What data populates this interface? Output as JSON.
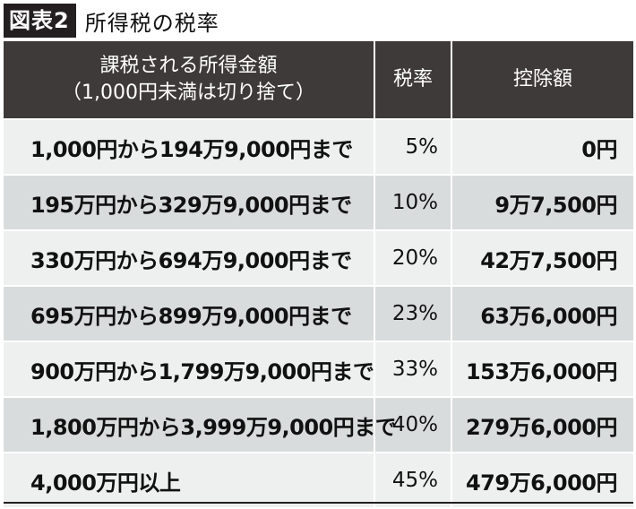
{
  "figure": {
    "badge": "図表2",
    "title": "所得税の税率"
  },
  "header": {
    "col1_line1": "課税される所得金額",
    "col1_line2": "（1,000円未満は切り捨て）",
    "col2": "税率",
    "col3": "控除額"
  },
  "rows": [
    {
      "range": "1,000円から194万9,000円まで",
      "rate": "5%",
      "deduction": "0円"
    },
    {
      "range": "195万円から329万9,000円まで",
      "rate": "10%",
      "deduction": "9万7,500円"
    },
    {
      "range": "330万円から694万9,000円まで",
      "rate": "20%",
      "deduction": "42万7,500円"
    },
    {
      "range": "695万円から899万9,000円まで",
      "rate": "23%",
      "deduction": "63万6,000円"
    },
    {
      "range": "900万円から1,799万9,000円まで",
      "rate": "33%",
      "deduction": "153万6,000円"
    },
    {
      "range": "1,800万円から3,999万9,000円まで",
      "rate": "40%",
      "deduction": "279万6,000円"
    },
    {
      "range": "4,000万円以上",
      "rate": "45%",
      "deduction": "479万6,000円"
    }
  ]
}
